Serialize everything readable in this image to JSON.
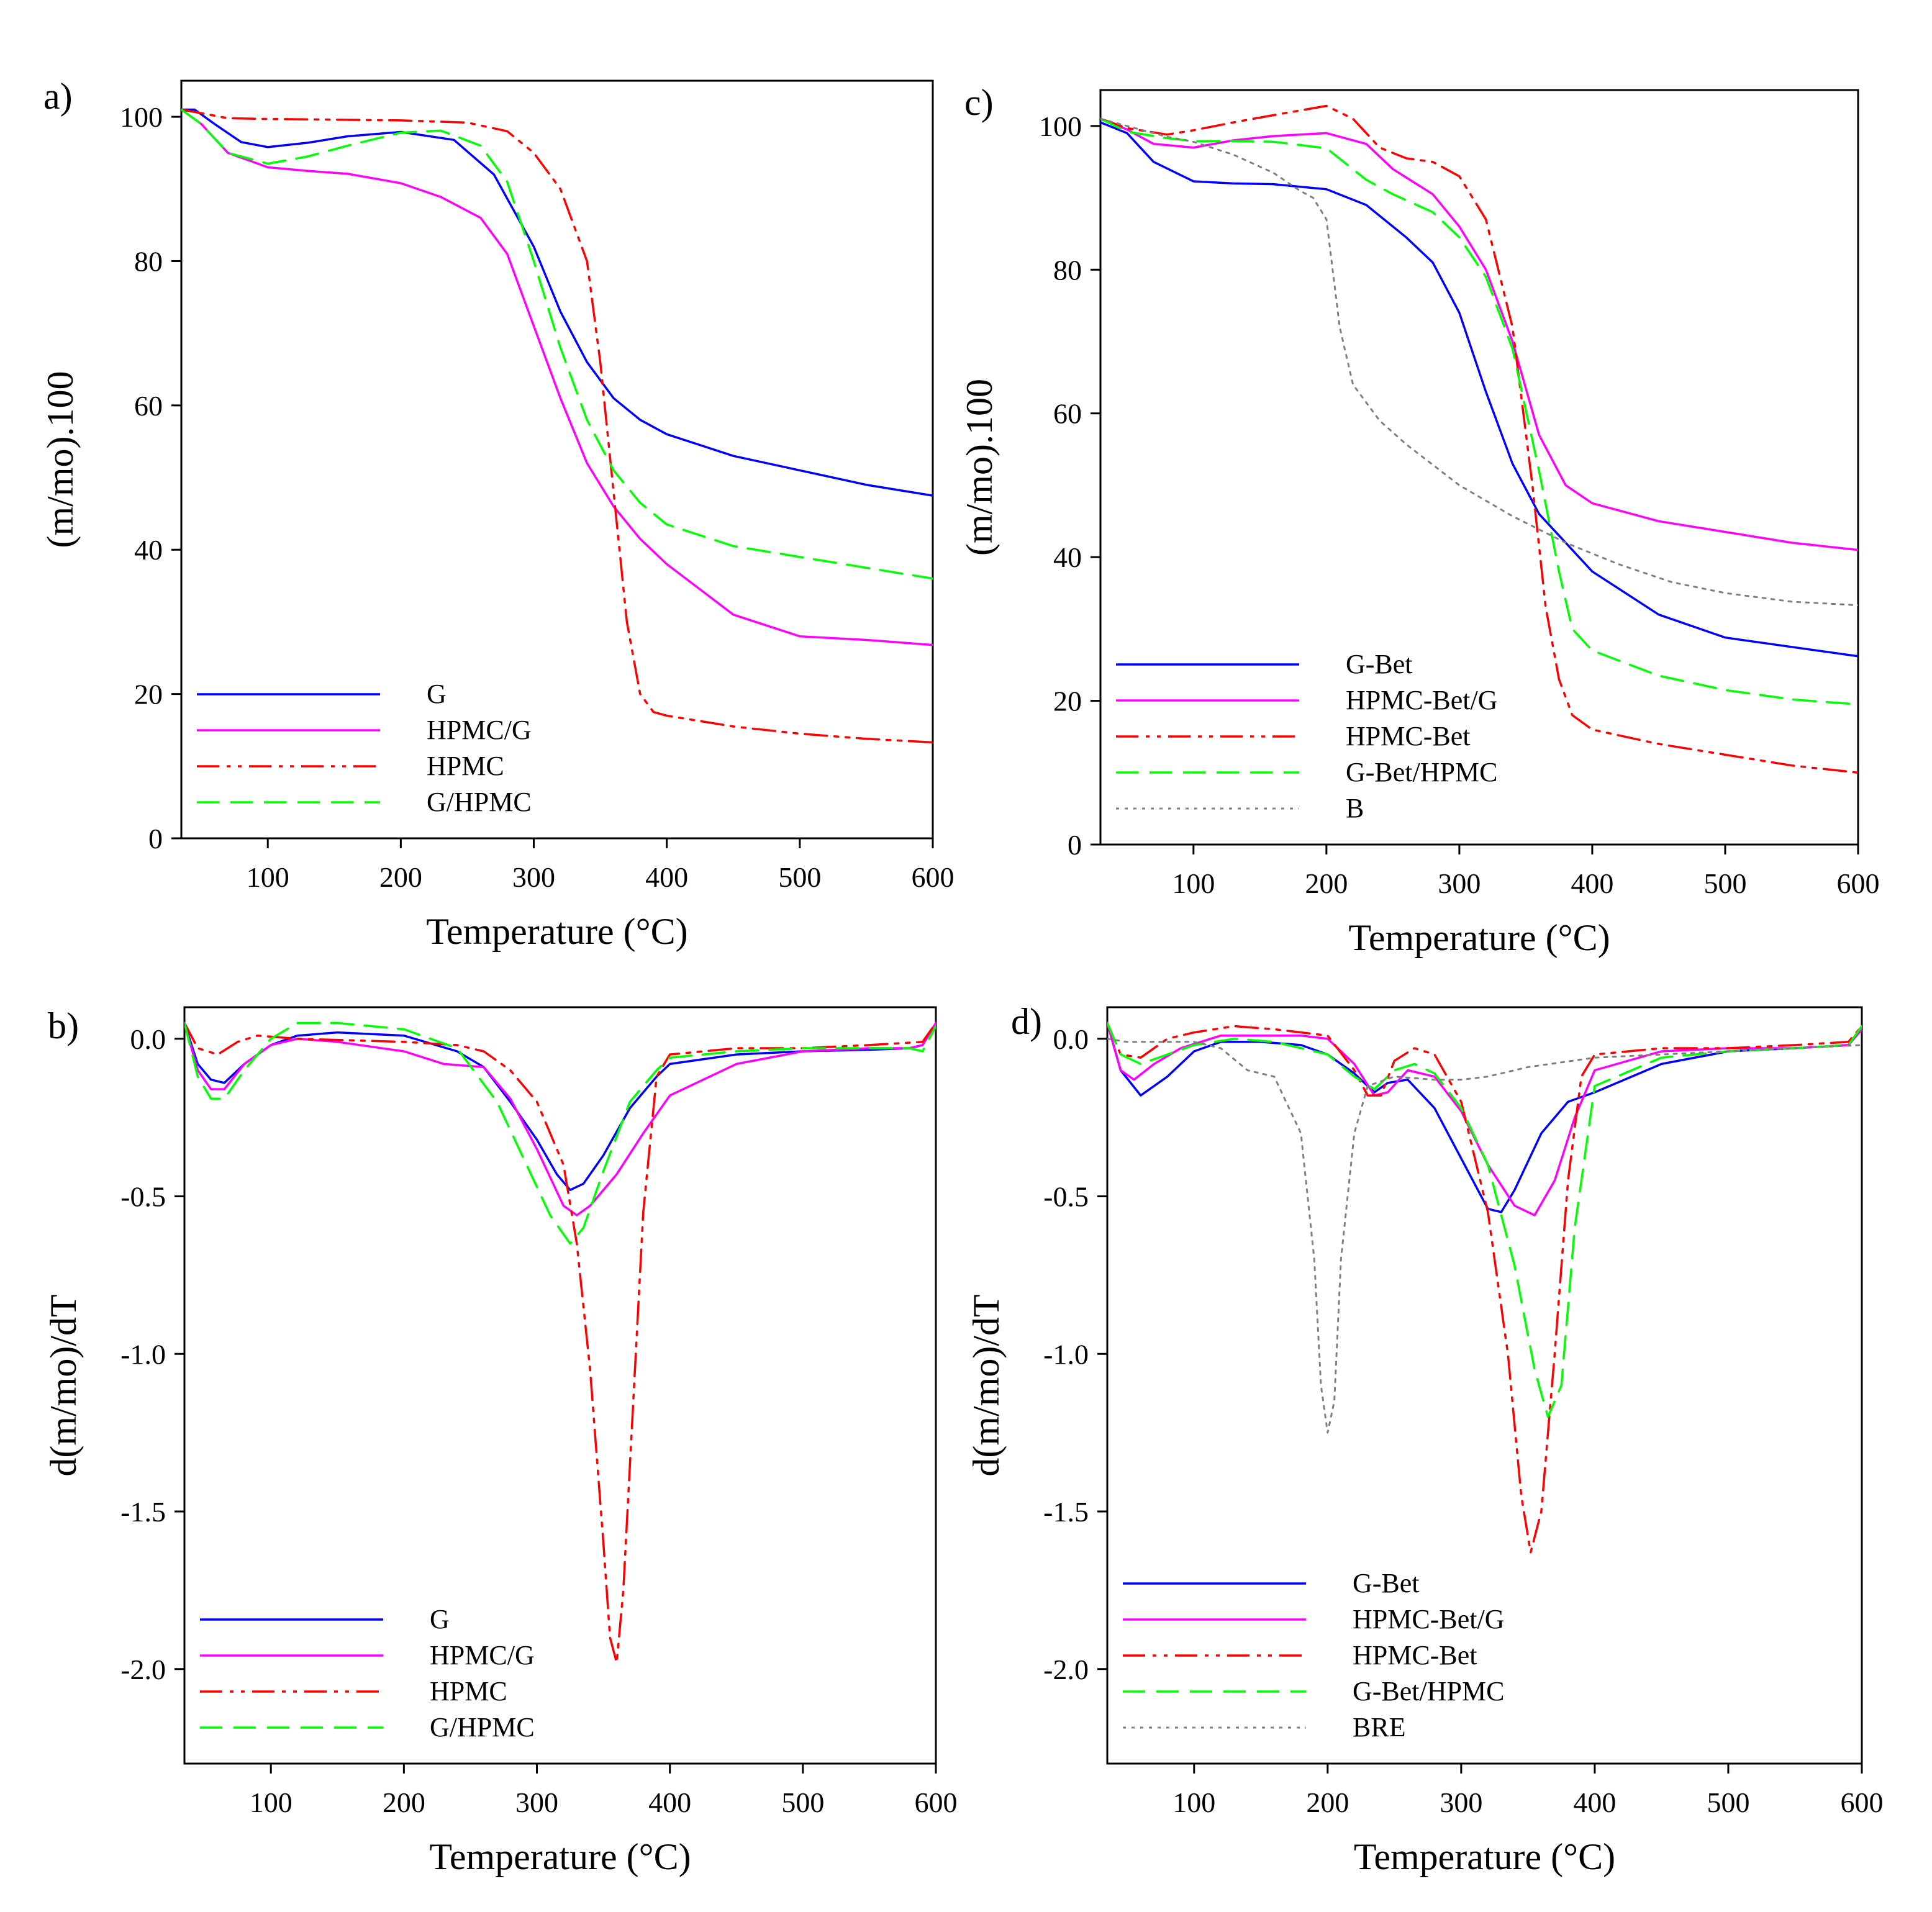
{
  "colors": {
    "blue": "#0000ff",
    "magenta": "#ff00ff",
    "red": "#ff0000",
    "green": "#00ff00",
    "gray": "#808080"
  },
  "chart_data": [
    {
      "panel": "a)",
      "type": "line",
      "xlabel": "Temperature (°C)",
      "ylabel": "(m/mo).100",
      "xlim": [
        35,
        600
      ],
      "ylim": [
        0,
        105
      ],
      "xticks": [
        100,
        200,
        300,
        400,
        500,
        600
      ],
      "yticks": [
        0,
        20,
        40,
        60,
        80,
        100
      ],
      "legend_position": "bottom-left",
      "series": [
        {
          "name": "G",
          "color": "#0000ff",
          "dash": "solid",
          "x": [
            35,
            45,
            60,
            80,
            100,
            130,
            160,
            200,
            240,
            270,
            300,
            320,
            340,
            360,
            380,
            400,
            450,
            500,
            550,
            600
          ],
          "y": [
            101,
            101,
            99,
            96.5,
            95.8,
            96.4,
            97.3,
            97.9,
            96.8,
            92,
            82,
            73,
            66,
            61,
            58,
            56,
            53,
            51,
            49,
            47.5
          ]
        },
        {
          "name": "HPMC/G",
          "color": "#ff00ff",
          "dash": "solid",
          "x": [
            35,
            50,
            70,
            100,
            130,
            160,
            200,
            230,
            260,
            280,
            300,
            320,
            340,
            360,
            380,
            400,
            450,
            500,
            550,
            600
          ],
          "y": [
            101,
            99,
            95,
            93,
            92.5,
            92.1,
            90.8,
            88.9,
            86,
            81,
            71,
            61,
            52,
            46,
            41.5,
            38,
            31,
            28,
            27.5,
            26.8
          ]
        },
        {
          "name": "HPMC",
          "color": "#ff0000",
          "dash": "dash-dot-dot",
          "x": [
            35,
            50,
            70,
            100,
            150,
            200,
            250,
            280,
            300,
            320,
            340,
            350,
            360,
            370,
            380,
            390,
            400,
            450,
            500,
            550,
            600
          ],
          "y": [
            101,
            100.5,
            99.8,
            99.7,
            99.6,
            99.5,
            99.2,
            98,
            95,
            90,
            80,
            66,
            48,
            30,
            20,
            17.5,
            17,
            15.5,
            14.5,
            13.8,
            13.3
          ]
        },
        {
          "name": "G/HPMC",
          "color": "#00ff00",
          "dash": "dash",
          "x": [
            35,
            50,
            70,
            100,
            130,
            160,
            200,
            230,
            260,
            280,
            300,
            320,
            340,
            360,
            380,
            400,
            450,
            500,
            550,
            600
          ],
          "y": [
            101,
            99,
            95,
            93.5,
            94.5,
            96,
            97.8,
            98.1,
            96,
            91,
            80,
            68,
            58,
            51,
            46.5,
            43.5,
            40.5,
            39,
            37.5,
            36
          ]
        }
      ]
    },
    {
      "panel": "c)",
      "type": "line",
      "xlabel": "Temperature (°C)",
      "ylabel": "(m/mo).100",
      "xlim": [
        30,
        600
      ],
      "ylim": [
        0,
        105
      ],
      "xticks": [
        100,
        200,
        300,
        400,
        500,
        600
      ],
      "yticks": [
        0,
        20,
        40,
        60,
        80,
        100
      ],
      "legend_position": "bottom-left",
      "series": [
        {
          "name": "G-Bet",
          "color": "#0000ff",
          "dash": "solid",
          "x": [
            30,
            50,
            70,
            100,
            130,
            160,
            200,
            230,
            260,
            280,
            300,
            320,
            340,
            360,
            380,
            400,
            450,
            500,
            550,
            600
          ],
          "y": [
            100.5,
            99,
            95,
            92.3,
            92,
            91.9,
            91.2,
            89,
            84.5,
            81,
            74,
            63,
            53,
            46,
            42,
            38,
            32,
            28.8,
            27.5,
            26.2
          ]
        },
        {
          "name": "HPMC-Bet/G",
          "color": "#ff00ff",
          "dash": "solid",
          "x": [
            30,
            50,
            70,
            100,
            130,
            160,
            200,
            230,
            250,
            280,
            300,
            320,
            340,
            360,
            380,
            400,
            450,
            500,
            550,
            600
          ],
          "y": [
            101,
            99.5,
            97.5,
            97,
            98,
            98.6,
            99,
            97.5,
            94,
            90.5,
            86,
            80,
            70,
            57,
            50,
            47.5,
            45,
            43.5,
            42,
            41
          ]
        },
        {
          "name": "HPMC-Bet",
          "color": "#ff0000",
          "dash": "dash-dot-dot",
          "x": [
            30,
            50,
            80,
            100,
            130,
            160,
            200,
            220,
            240,
            260,
            280,
            300,
            320,
            340,
            355,
            365,
            375,
            385,
            400,
            450,
            500,
            550,
            600
          ],
          "y": [
            101,
            99.7,
            98.8,
            99.4,
            100.5,
            101.5,
            102.8,
            101,
            97,
            95.5,
            95,
            93,
            87,
            72,
            50,
            33,
            23,
            18,
            16,
            14,
            12.5,
            11,
            10
          ]
        },
        {
          "name": "G-Bet/HPMC",
          "color": "#00ff00",
          "dash": "dash",
          "x": [
            30,
            50,
            80,
            100,
            130,
            160,
            200,
            230,
            250,
            280,
            300,
            320,
            340,
            360,
            375,
            385,
            400,
            450,
            500,
            550,
            600
          ],
          "y": [
            101,
            99.2,
            98.3,
            97.9,
            97.9,
            97.8,
            96.9,
            92.5,
            90.5,
            88,
            84.5,
            79,
            69,
            52,
            38,
            30,
            27,
            23.5,
            21.5,
            20.2,
            19.5
          ]
        },
        {
          "name": "B",
          "color": "#808080",
          "dash": "dot",
          "x": [
            30,
            50,
            80,
            100,
            130,
            160,
            180,
            190,
            200,
            210,
            220,
            240,
            260,
            300,
            340,
            380,
            420,
            460,
            500,
            550,
            600
          ],
          "y": [
            101,
            100,
            98.5,
            97.8,
            96,
            93.5,
            91,
            90,
            87,
            72,
            64,
            59,
            55.7,
            50,
            45.7,
            42,
            39,
            36.5,
            35,
            33.8,
            33.3
          ]
        }
      ]
    },
    {
      "panel": "b)",
      "type": "line",
      "xlabel": "Temperature (°C)",
      "ylabel": "d(m/mo)/dT",
      "xlim": [
        35,
        600
      ],
      "ylim": [
        -2.3,
        0.1
      ],
      "xticks": [
        100,
        200,
        300,
        400,
        500,
        600
      ],
      "yticks": [
        0.0,
        -0.5,
        -1.0,
        -1.5,
        -2.0
      ],
      "legend_position": "bottom-left",
      "series": [
        {
          "name": "G",
          "color": "#0000ff",
          "dash": "solid",
          "x": [
            35,
            45,
            55,
            65,
            80,
            100,
            120,
            150,
            200,
            240,
            260,
            280,
            300,
            315,
            325,
            335,
            350,
            370,
            390,
            400,
            450,
            500,
            550,
            580,
            590,
            600
          ],
          "y": [
            0.05,
            -0.08,
            -0.13,
            -0.14,
            -0.08,
            -0.02,
            0.01,
            0.02,
            0.01,
            -0.04,
            -0.09,
            -0.2,
            -0.32,
            -0.43,
            -0.48,
            -0.46,
            -0.37,
            -0.22,
            -0.12,
            -0.08,
            -0.05,
            -0.04,
            -0.035,
            -0.03,
            -0.02,
            0.05
          ]
        },
        {
          "name": "HPMC/G",
          "color": "#ff00ff",
          "dash": "solid",
          "x": [
            35,
            45,
            55,
            65,
            80,
            100,
            120,
            150,
            200,
            230,
            260,
            280,
            300,
            320,
            330,
            340,
            360,
            380,
            400,
            450,
            500,
            550,
            580,
            590,
            600
          ],
          "y": [
            0.05,
            -0.1,
            -0.16,
            -0.16,
            -0.08,
            -0.02,
            0.0,
            -0.01,
            -0.04,
            -0.08,
            -0.09,
            -0.19,
            -0.35,
            -0.53,
            -0.56,
            -0.53,
            -0.43,
            -0.3,
            -0.18,
            -0.08,
            -0.04,
            -0.03,
            -0.03,
            -0.02,
            0.05
          ]
        },
        {
          "name": "HPMC",
          "color": "#ff0000",
          "dash": "dash-dot-dot",
          "x": [
            35,
            45,
            60,
            75,
            90,
            120,
            200,
            240,
            260,
            280,
            300,
            320,
            330,
            340,
            350,
            355,
            360,
            365,
            370,
            380,
            390,
            400,
            450,
            500,
            550,
            590,
            600
          ],
          "y": [
            0.05,
            -0.03,
            -0.05,
            -0.01,
            0.01,
            0.0,
            -0.01,
            -0.02,
            -0.04,
            -0.1,
            -0.2,
            -0.4,
            -0.65,
            -1.05,
            -1.6,
            -1.9,
            -1.98,
            -1.75,
            -1.35,
            -0.55,
            -0.12,
            -0.05,
            -0.03,
            -0.03,
            -0.02,
            -0.01,
            0.05
          ]
        },
        {
          "name": "G/HPMC",
          "color": "#00ff00",
          "dash": "dash",
          "x": [
            35,
            45,
            55,
            65,
            80,
            100,
            120,
            150,
            200,
            240,
            270,
            290,
            310,
            325,
            335,
            350,
            370,
            390,
            400,
            450,
            500,
            550,
            580,
            590,
            600
          ],
          "y": [
            0.05,
            -0.12,
            -0.19,
            -0.19,
            -0.1,
            0.0,
            0.05,
            0.05,
            0.03,
            -0.03,
            -0.2,
            -0.38,
            -0.56,
            -0.65,
            -0.6,
            -0.42,
            -0.2,
            -0.1,
            -0.06,
            -0.04,
            -0.03,
            -0.03,
            -0.03,
            -0.04,
            0.04
          ]
        }
      ]
    },
    {
      "panel": "d)",
      "type": "line",
      "xlabel": "Temperature (°C)",
      "ylabel": "d(m/mo)/dT",
      "xlim": [
        35,
        600
      ],
      "ylim": [
        -2.3,
        0.1
      ],
      "xticks": [
        100,
        200,
        300,
        400,
        500,
        600
      ],
      "yticks": [
        0.0,
        -0.5,
        -1.0,
        -1.5,
        -2.0
      ],
      "legend_position": "bottom-left",
      "series": [
        {
          "name": "G-Bet",
          "color": "#0000ff",
          "dash": "solid",
          "x": [
            35,
            45,
            60,
            80,
            100,
            120,
            150,
            180,
            200,
            220,
            235,
            245,
            260,
            280,
            300,
            320,
            330,
            340,
            360,
            380,
            400,
            450,
            500,
            550,
            590,
            600
          ],
          "y": [
            0.05,
            -0.1,
            -0.18,
            -0.12,
            -0.04,
            -0.01,
            -0.01,
            -0.02,
            -0.05,
            -0.11,
            -0.17,
            -0.14,
            -0.13,
            -0.22,
            -0.38,
            -0.54,
            -0.55,
            -0.48,
            -0.3,
            -0.2,
            -0.17,
            -0.08,
            -0.04,
            -0.03,
            -0.02,
            0.03
          ]
        },
        {
          "name": "HPMC-Bet/G",
          "color": "#ff00ff",
          "dash": "solid",
          "x": [
            35,
            45,
            55,
            70,
            90,
            120,
            150,
            180,
            200,
            220,
            235,
            245,
            260,
            280,
            300,
            320,
            340,
            355,
            370,
            385,
            400,
            450,
            500,
            550,
            590,
            600
          ],
          "y": [
            0.05,
            -0.1,
            -0.13,
            -0.08,
            -0.03,
            0.01,
            0.01,
            0.01,
            0.0,
            -0.08,
            -0.18,
            -0.17,
            -0.1,
            -0.12,
            -0.23,
            -0.4,
            -0.53,
            -0.56,
            -0.45,
            -0.25,
            -0.1,
            -0.04,
            -0.03,
            -0.03,
            -0.02,
            0.03
          ]
        },
        {
          "name": "HPMC-Bet",
          "color": "#ff0000",
          "dash": "dash-dot-dot",
          "x": [
            35,
            45,
            60,
            80,
            100,
            130,
            160,
            200,
            220,
            230,
            240,
            250,
            265,
            280,
            300,
            320,
            335,
            345,
            352,
            360,
            370,
            380,
            390,
            400,
            450,
            500,
            550,
            590,
            600
          ],
          "y": [
            0.05,
            -0.05,
            -0.06,
            0.0,
            0.02,
            0.04,
            0.03,
            0.01,
            -0.1,
            -0.18,
            -0.18,
            -0.07,
            -0.03,
            -0.05,
            -0.2,
            -0.55,
            -1.0,
            -1.45,
            -1.63,
            -1.5,
            -1.0,
            -0.45,
            -0.12,
            -0.05,
            -0.03,
            -0.03,
            -0.02,
            -0.01,
            0.04
          ]
        },
        {
          "name": "G-Bet/HPMC",
          "color": "#00ff00",
          "dash": "dash",
          "x": [
            35,
            45,
            60,
            80,
            100,
            130,
            160,
            200,
            220,
            235,
            250,
            265,
            280,
            300,
            320,
            340,
            355,
            365,
            375,
            385,
            400,
            450,
            500,
            550,
            590,
            600
          ],
          "y": [
            0.05,
            -0.05,
            -0.08,
            -0.05,
            -0.02,
            0.0,
            -0.01,
            -0.05,
            -0.12,
            -0.16,
            -0.1,
            -0.08,
            -0.11,
            -0.22,
            -0.4,
            -0.72,
            -1.05,
            -1.2,
            -1.1,
            -0.6,
            -0.15,
            -0.06,
            -0.04,
            -0.03,
            -0.02,
            0.04
          ]
        },
        {
          "name": "BRE",
          "color": "#808080",
          "dash": "dot",
          "x": [
            35,
            50,
            80,
            100,
            120,
            140,
            160,
            180,
            190,
            195,
            200,
            205,
            210,
            220,
            230,
            250,
            280,
            300,
            320,
            350,
            400,
            450,
            500,
            550,
            600
          ],
          "y": [
            0.0,
            -0.01,
            -0.01,
            -0.01,
            -0.03,
            -0.1,
            -0.12,
            -0.3,
            -0.7,
            -1.1,
            -1.25,
            -1.15,
            -0.7,
            -0.3,
            -0.15,
            -0.12,
            -0.13,
            -0.13,
            -0.12,
            -0.09,
            -0.06,
            -0.05,
            -0.04,
            -0.03,
            -0.02
          ]
        }
      ]
    }
  ]
}
